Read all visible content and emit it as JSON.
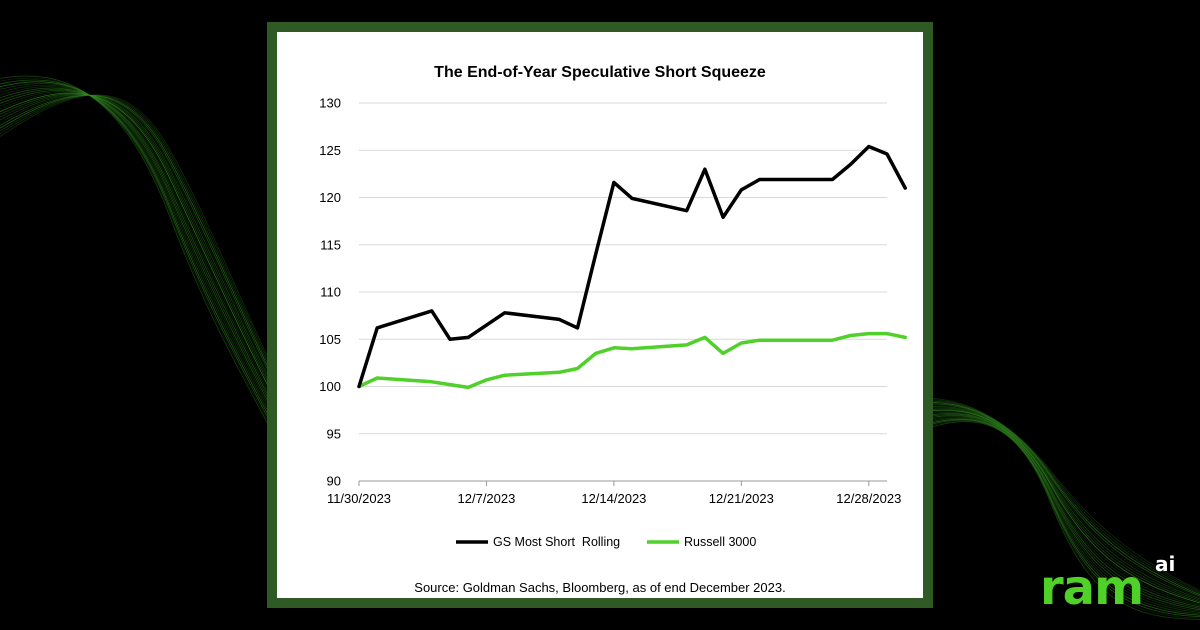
{
  "colors": {
    "background": "#000000",
    "frame": "#2f5a25",
    "panel": "#ffffff",
    "accent_green": "#4fd12a"
  },
  "brand": {
    "logo_main": "ram",
    "logo_sup": "ai"
  },
  "footer": {
    "source": "Source: Goldman Sachs, Bloomberg, as of end December 2023."
  },
  "chart_data": {
    "type": "line",
    "title": "The End-of-Year Speculative Short Squeeze",
    "xlabel": "",
    "ylabel": "",
    "ylim": [
      90,
      130
    ],
    "yticks": [
      90,
      95,
      100,
      105,
      110,
      115,
      120,
      125,
      130
    ],
    "xtick_labels": [
      "11/30/2023",
      "12/7/2023",
      "12/14/2023",
      "12/21/2023",
      "12/28/2023"
    ],
    "xlim": [
      "2023-11-30",
      "2023-12-29"
    ],
    "grid": "horizontal",
    "legend_position": "bottom",
    "series": [
      {
        "name": "GS Most Short  Rolling",
        "color": "#000000",
        "points": [
          [
            "2023-11-30",
            100.0
          ],
          [
            "2023-12-01",
            106.2
          ],
          [
            "2023-12-04",
            108.0
          ],
          [
            "2023-12-05",
            105.0
          ],
          [
            "2023-12-06",
            105.2
          ],
          [
            "2023-12-08",
            107.8
          ],
          [
            "2023-12-11",
            107.1
          ],
          [
            "2023-12-12",
            106.2
          ],
          [
            "2023-12-13",
            114.0
          ],
          [
            "2023-12-14",
            121.6
          ],
          [
            "2023-12-15",
            119.9
          ],
          [
            "2023-12-18",
            118.6
          ],
          [
            "2023-12-19",
            123.0
          ],
          [
            "2023-12-20",
            117.9
          ],
          [
            "2023-12-21",
            120.8
          ],
          [
            "2023-12-22",
            121.9
          ],
          [
            "2023-12-26",
            121.9
          ],
          [
            "2023-12-27",
            123.5
          ],
          [
            "2023-12-28",
            125.4
          ],
          [
            "2023-12-29",
            124.6
          ],
          [
            "2023-12-30",
            121.0
          ]
        ]
      },
      {
        "name": "Russell 3000",
        "color": "#4fd12a",
        "points": [
          [
            "2023-11-30",
            100.0
          ],
          [
            "2023-12-01",
            100.9
          ],
          [
            "2023-12-04",
            100.5
          ],
          [
            "2023-12-05",
            100.2
          ],
          [
            "2023-12-06",
            99.9
          ],
          [
            "2023-12-07",
            100.7
          ],
          [
            "2023-12-08",
            101.2
          ],
          [
            "2023-12-11",
            101.5
          ],
          [
            "2023-12-12",
            101.9
          ],
          [
            "2023-12-13",
            103.5
          ],
          [
            "2023-12-14",
            104.1
          ],
          [
            "2023-12-15",
            104.0
          ],
          [
            "2023-12-18",
            104.4
          ],
          [
            "2023-12-19",
            105.2
          ],
          [
            "2023-12-20",
            103.5
          ],
          [
            "2023-12-21",
            104.6
          ],
          [
            "2023-12-22",
            104.9
          ],
          [
            "2023-12-26",
            104.9
          ],
          [
            "2023-12-27",
            105.4
          ],
          [
            "2023-12-28",
            105.6
          ],
          [
            "2023-12-29",
            105.6
          ],
          [
            "2023-12-30",
            105.2
          ]
        ]
      }
    ]
  }
}
